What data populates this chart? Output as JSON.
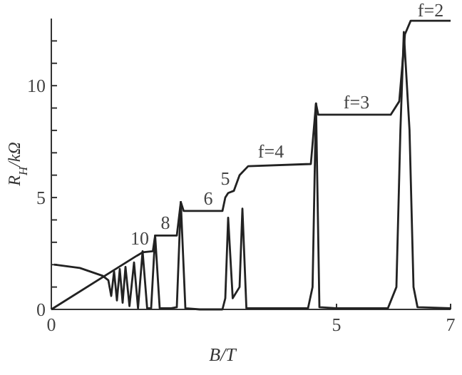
{
  "chart_data": {
    "type": "line",
    "xlabel": "B/T",
    "ylabel": "R$_{H}$/kΩ",
    "xlim": [
      0,
      7
    ],
    "ylim": [
      0,
      13
    ],
    "xticks": [
      0,
      5,
      7
    ],
    "yticks": [
      0,
      {
        "value": 1,
        "label": null
      },
      {
        "value": 2,
        "label": null
      },
      {
        "value": 3,
        "label": null
      },
      {
        "value": 4,
        "label": null
      },
      5,
      {
        "value": 6,
        "label": null
      },
      {
        "value": 7,
        "label": null
      },
      {
        "value": 8,
        "label": null
      },
      {
        "value": 9,
        "label": null
      },
      10,
      {
        "value": 11,
        "label": null
      },
      {
        "value": 12,
        "label": null
      }
    ],
    "grid": false,
    "marker": "none",
    "line_style": "solid",
    "series": [
      {
        "color": "#222222",
        "x": [
          0,
          1.5,
          1.6,
          1.78,
          1.82,
          2.2,
          2.27,
          2.32,
          3.0,
          3.05,
          3.1,
          3.2,
          3.3,
          3.45,
          4.55,
          4.64,
          4.68,
          5.95,
          6.1,
          6.2,
          6.3,
          7.0
        ],
        "values": [
          0,
          2.4,
          2.55,
          2.6,
          3.3,
          3.3,
          4.8,
          4.4,
          4.4,
          5.0,
          5.2,
          5.3,
          6.0,
          6.4,
          6.5,
          9.2,
          8.7,
          8.7,
          9.3,
          12.3,
          12.9,
          12.9
        ]
      },
      {
        "color": "#222222",
        "x": [
          0.05,
          0.5,
          0.9,
          1.0,
          1.05,
          1.1,
          1.15,
          1.2,
          1.25,
          1.3,
          1.37,
          1.45,
          1.52,
          1.6,
          1.68,
          1.75,
          1.82,
          1.9,
          2.1,
          2.2,
          2.27,
          2.35,
          2.6,
          3.0,
          3.05,
          3.1,
          3.18,
          3.3,
          3.35,
          3.42,
          3.6,
          4.5,
          4.58,
          4.64,
          4.7,
          5.0,
          5.9,
          6.05,
          6.12,
          6.18,
          6.28,
          6.35,
          6.42,
          7.0
        ],
        "values": [
          2.0,
          1.85,
          1.5,
          1.3,
          0.6,
          1.7,
          0.4,
          1.8,
          0.3,
          1.9,
          0.15,
          2.1,
          0.05,
          2.6,
          0.05,
          0.05,
          3.3,
          0.05,
          0.05,
          0.1,
          4.8,
          0.05,
          0,
          0,
          0.5,
          4.1,
          0.5,
          1,
          4.5,
          0.05,
          0.05,
          0.05,
          1,
          9.2,
          0.1,
          0.05,
          0.05,
          1,
          8,
          12.4,
          8,
          1,
          0.1,
          0.05
        ]
      }
    ],
    "annotations": [
      {
        "text": "10",
        "x": 1.55,
        "y": 2.7
      },
      {
        "text": "8",
        "x": 2.0,
        "y": 3.4
      },
      {
        "text": "6",
        "x": 2.75,
        "y": 4.5
      },
      {
        "text": "5",
        "x": 3.05,
        "y": 5.4
      },
      {
        "text": "f=4",
        "x": 3.85,
        "y": 6.6
      },
      {
        "text": "f=3",
        "x": 5.35,
        "y": 8.8
      },
      {
        "text": "f=2",
        "x": 6.65,
        "y": 12.9
      }
    ]
  }
}
